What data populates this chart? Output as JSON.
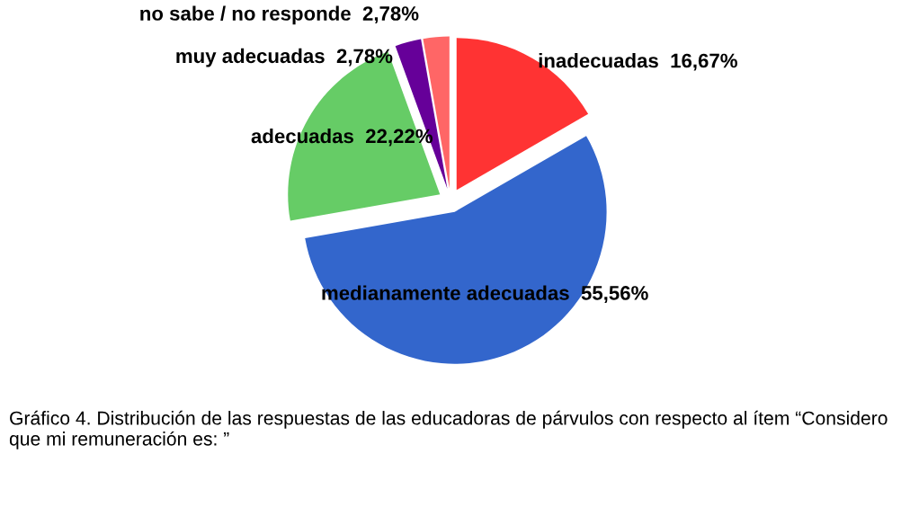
{
  "chart_data": {
    "type": "pie",
    "categories": [
      "inadecuadas",
      "medianamente adecuadas",
      "adecuadas",
      "muy adecuadas",
      "no sabe / no responde"
    ],
    "values": [
      16.67,
      55.56,
      22.22,
      2.78,
      2.78
    ],
    "value_labels": [
      "16,67%",
      "55,56%",
      "22,22%",
      "2,78%",
      "2,78%"
    ],
    "colors": [
      "#ff3333",
      "#3366cc",
      "#66cc66",
      "#660099",
      "#ff6666"
    ],
    "annotations": [
      "Gráfico 4. Distribución de las respuestas de las educadoras de párvulos con respecto al ítem “Considero que mi remuneración es: ”"
    ]
  }
}
